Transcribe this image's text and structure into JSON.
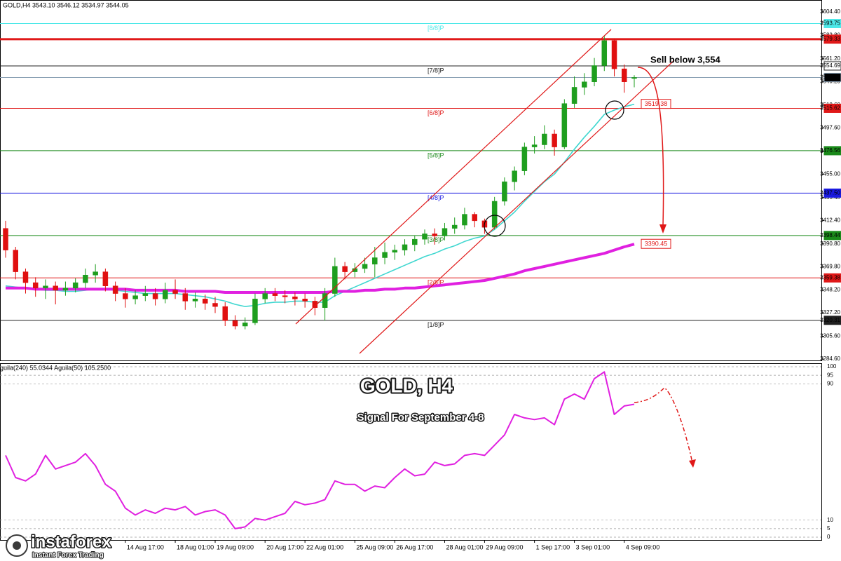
{
  "branding": {
    "name": "instaforex",
    "tagline": "Instant Forex Trading"
  },
  "chart_data": [
    {
      "type": "candlestick",
      "title": "GOLD,H4  3543.10 3546.12 3534.97 3544.05",
      "open": [
        3405,
        3385,
        3365,
        3355,
        3350,
        3352,
        3348,
        3350,
        3355,
        3362,
        3365,
        3352,
        3345,
        3340,
        3343,
        3345,
        3340,
        3348,
        3345,
        3338,
        3340,
        3336,
        3333,
        3320,
        3315,
        3318,
        3340,
        3345,
        3343,
        3342,
        3340,
        3338,
        3332,
        3345,
        3370,
        3365,
        3368,
        3372,
        3378,
        3383,
        3385,
        3390,
        3395,
        3400,
        3398,
        3405,
        3408,
        3418,
        3412,
        3406,
        3430,
        3448,
        3458,
        3480,
        3482,
        3492,
        3480,
        3520,
        3535,
        3540,
        3555,
        3578,
        3552,
        3543.1
      ],
      "high": [
        3412,
        3388,
        3368,
        3360,
        3358,
        3356,
        3356,
        3359,
        3368,
        3372,
        3368,
        3356,
        3350,
        3348,
        3352,
        3350,
        3355,
        3358,
        3350,
        3346,
        3344,
        3342,
        3337,
        3325,
        3323,
        3345,
        3350,
        3350,
        3348,
        3346,
        3345,
        3342,
        3350,
        3378,
        3374,
        3373,
        3378,
        3388,
        3392,
        3390,
        3395,
        3398,
        3404,
        3405,
        3410,
        3415,
        3424,
        3420,
        3414,
        3434,
        3452,
        3462,
        3484,
        3490,
        3500,
        3496,
        3524,
        3545,
        3548,
        3562,
        3582,
        3580,
        3556,
        3546.12
      ],
      "low": [
        3378,
        3358,
        3345,
        3342,
        3340,
        3335,
        3343,
        3346,
        3350,
        3355,
        3347,
        3338,
        3332,
        3335,
        3338,
        3334,
        3336,
        3340,
        3330,
        3332,
        3330,
        3327,
        3315,
        3312,
        3312,
        3316,
        3336,
        3338,
        3336,
        3334,
        3332,
        3325,
        3320,
        3342,
        3358,
        3360,
        3364,
        3360,
        3372,
        3376,
        3380,
        3384,
        3390,
        3390,
        3394,
        3400,
        3404,
        3406,
        3400,
        3404,
        3426,
        3440,
        3454,
        3474,
        3478,
        3472,
        3478,
        3516,
        3528,
        3536,
        3550,
        3545,
        3530,
        3534.97
      ],
      "close": [
        3385,
        3365,
        3355,
        3350,
        3352,
        3348,
        3350,
        3355,
        3362,
        3365,
        3352,
        3345,
        3340,
        3343,
        3345,
        3340,
        3348,
        3345,
        3338,
        3340,
        3336,
        3333,
        3320,
        3315,
        3318,
        3340,
        3345,
        3343,
        3342,
        3340,
        3338,
        3332,
        3345,
        3370,
        3365,
        3368,
        3372,
        3378,
        3383,
        3385,
        3390,
        3395,
        3400,
        3398,
        3405,
        3408,
        3418,
        3412,
        3406,
        3430,
        3448,
        3458,
        3480,
        3482,
        3492,
        3480,
        3520,
        3535,
        3540,
        3555,
        3578,
        3552,
        3540,
        3544.05
      ],
      "up_color": "#1e9e1e",
      "down_color": "#e01010",
      "ylim": [
        3282.7,
        3615.4
      ],
      "yticks": [
        {
          "value": 3604.4,
          "label": "3604.40"
        },
        {
          "value": 3582.8,
          "label": "3582.80"
        },
        {
          "value": 3561.2,
          "label": "3561.20"
        },
        {
          "value": 3540.2,
          "label": "3540.20"
        },
        {
          "value": 3518.6,
          "label": "3518.60"
        },
        {
          "value": 3497.6,
          "label": "3497.60"
        },
        {
          "value": 3476,
          "label": "3476.00"
        },
        {
          "value": 3455,
          "label": "3455.00"
        },
        {
          "value": 3433.4,
          "label": "3433.40"
        },
        {
          "value": 3412.4,
          "label": "3412.40"
        },
        {
          "value": 3390.8,
          "label": "3390.80"
        },
        {
          "value": 3369.8,
          "label": "3369.80"
        },
        {
          "value": 3348.2,
          "label": "3348.20"
        },
        {
          "value": 3327.2,
          "label": "3327.20"
        },
        {
          "value": 3305.6,
          "label": "3305.60"
        },
        {
          "value": 3284.6,
          "label": "3284.60"
        }
      ],
      "lines": [
        {
          "color": "#3fd7d0",
          "width": 1.6,
          "end_label": "3519.38",
          "values": [
            3352,
            3351,
            3350,
            3349,
            3348,
            3348,
            3347,
            3347,
            3348,
            3349,
            3349,
            3348,
            3347,
            3346,
            3345,
            3345,
            3345,
            3345,
            3344,
            3343,
            3342,
            3340,
            3338,
            3335,
            3333,
            3334,
            3336,
            3337,
            3337,
            3338,
            3338,
            3337,
            3337,
            3343,
            3347,
            3351,
            3355,
            3359,
            3363,
            3367,
            3371,
            3375,
            3379,
            3382,
            3386,
            3389,
            3393,
            3396,
            3398,
            3404,
            3412,
            3420,
            3430,
            3439,
            3448,
            3455,
            3466,
            3478,
            3489,
            3499,
            3510,
            3514,
            3517,
            3519.38
          ]
        },
        {
          "color": "#e020e0",
          "width": 4,
          "end_label": "3390.45",
          "values": [
            3350,
            3350,
            3350,
            3349,
            3349,
            3349,
            3349,
            3349,
            3349,
            3349,
            3349,
            3349,
            3349,
            3348,
            3348,
            3348,
            3348,
            3348,
            3347,
            3347,
            3347,
            3347,
            3346,
            3346,
            3346,
            3346,
            3346,
            3346,
            3346,
            3346,
            3346,
            3346,
            3346,
            3347,
            3347,
            3347,
            3348,
            3348,
            3349,
            3349,
            3350,
            3350,
            3351,
            3352,
            3353,
            3354,
            3355,
            3356,
            3357,
            3359,
            3361,
            3363,
            3366,
            3368,
            3370,
            3372,
            3374,
            3376,
            3378,
            3380,
            3382,
            3385,
            3388,
            3390.45
          ]
        }
      ],
      "levels": [
        {
          "label": "[8/8]P",
          "value": 3593.75,
          "value_label": "3593.75",
          "color": "#4de8e8",
          "width": 1,
          "box_text_color": "#ffffff"
        },
        {
          "value": 3579.33,
          "value_label": "3579.33",
          "color": "#e01818",
          "width": 3,
          "box_text_color": "#ffffff"
        },
        {
          "label": "[7/8]P",
          "value": 3554.69,
          "value_label": "3554.69",
          "color": "#202020",
          "box_color": "#ffffff",
          "width": 1,
          "box_text_color": "#000000"
        },
        {
          "value": 3544.05,
          "value_label": "3544.05",
          "color": "#8aa0b4",
          "box_color": "#000000",
          "width": 1,
          "box_text_color": "#ffffff"
        },
        {
          "label": "[6/8]P",
          "value": 3515.62,
          "value_label": "3515.62",
          "color": "#e01818",
          "width": 1,
          "box_text_color": "#ffffff"
        },
        {
          "label": "[5/8]P",
          "value": 3476.56,
          "value_label": "3476.56",
          "color": "#1a8a1a",
          "width": 1,
          "box_text_color": "#ffffff"
        },
        {
          "label": "[4/8]P",
          "value": 3437.5,
          "value_label": "3437.50",
          "color": "#1a1ae0",
          "width": 1,
          "box_text_color": "#ffffff"
        },
        {
          "label": "[3/8]P",
          "value": 3398.44,
          "value_label": "3398.44",
          "color": "#1a8a1a",
          "width": 1,
          "box_text_color": "#ffffff"
        },
        {
          "label": "[2/8]P",
          "value": 3359.38,
          "value_label": "3359.38",
          "color": "#e01818",
          "width": 1,
          "box_text_color": "#ffffff"
        },
        {
          "label": "[1/8]P",
          "value": 3320.31,
          "value_label": "3320.31",
          "color": "#202020",
          "width": 1,
          "box_text_color": "#ffffff"
        }
      ],
      "annotation": "Sell below 3,554"
    },
    {
      "type": "line",
      "title": "guila(240) 55.0344  Aguila(50) 105.2500",
      "overlay_title": "GOLD, H4",
      "subtitle": "Signal For September 4-8",
      "categories": [
        null,
        null,
        null,
        null,
        null,
        null,
        null,
        null,
        null,
        null,
        null,
        null,
        "14 Aug 17:00",
        null,
        null,
        null,
        null,
        "18 Aug 01:00",
        null,
        null,
        null,
        "19 Aug 09:00",
        null,
        null,
        null,
        null,
        "20 Aug 17:00",
        null,
        null,
        null,
        "22 Aug 01:00",
        null,
        null,
        null,
        null,
        "25 Aug 09:00",
        null,
        null,
        null,
        "26 Aug 17:00",
        null,
        null,
        null,
        null,
        "28 Aug 01:00",
        null,
        null,
        null,
        "29 Aug 09:00",
        null,
        null,
        null,
        null,
        "1 Sep 17:00",
        null,
        null,
        null,
        "3 Sep 01:00",
        null,
        null,
        null,
        null,
        "4 Sep 09:00",
        null
      ],
      "values": [
        48,
        35,
        33,
        37,
        48,
        40,
        42,
        44,
        49,
        42,
        31,
        27,
        17,
        13,
        16,
        14,
        17,
        16,
        18,
        13,
        15,
        16,
        13,
        5,
        6,
        11,
        10,
        12,
        14,
        21,
        19,
        20,
        22,
        33,
        31,
        31,
        27,
        30,
        29,
        35,
        40,
        36,
        37,
        44,
        42,
        43,
        48,
        49,
        48,
        54,
        60,
        72,
        70,
        69,
        70,
        66,
        81,
        84,
        81,
        93,
        97,
        72,
        77,
        78
      ],
      "color": "#e020e0",
      "ylim": [
        0,
        100
      ],
      "yticks": [
        100,
        95,
        90,
        10,
        5,
        0
      ],
      "grid": true
    }
  ]
}
